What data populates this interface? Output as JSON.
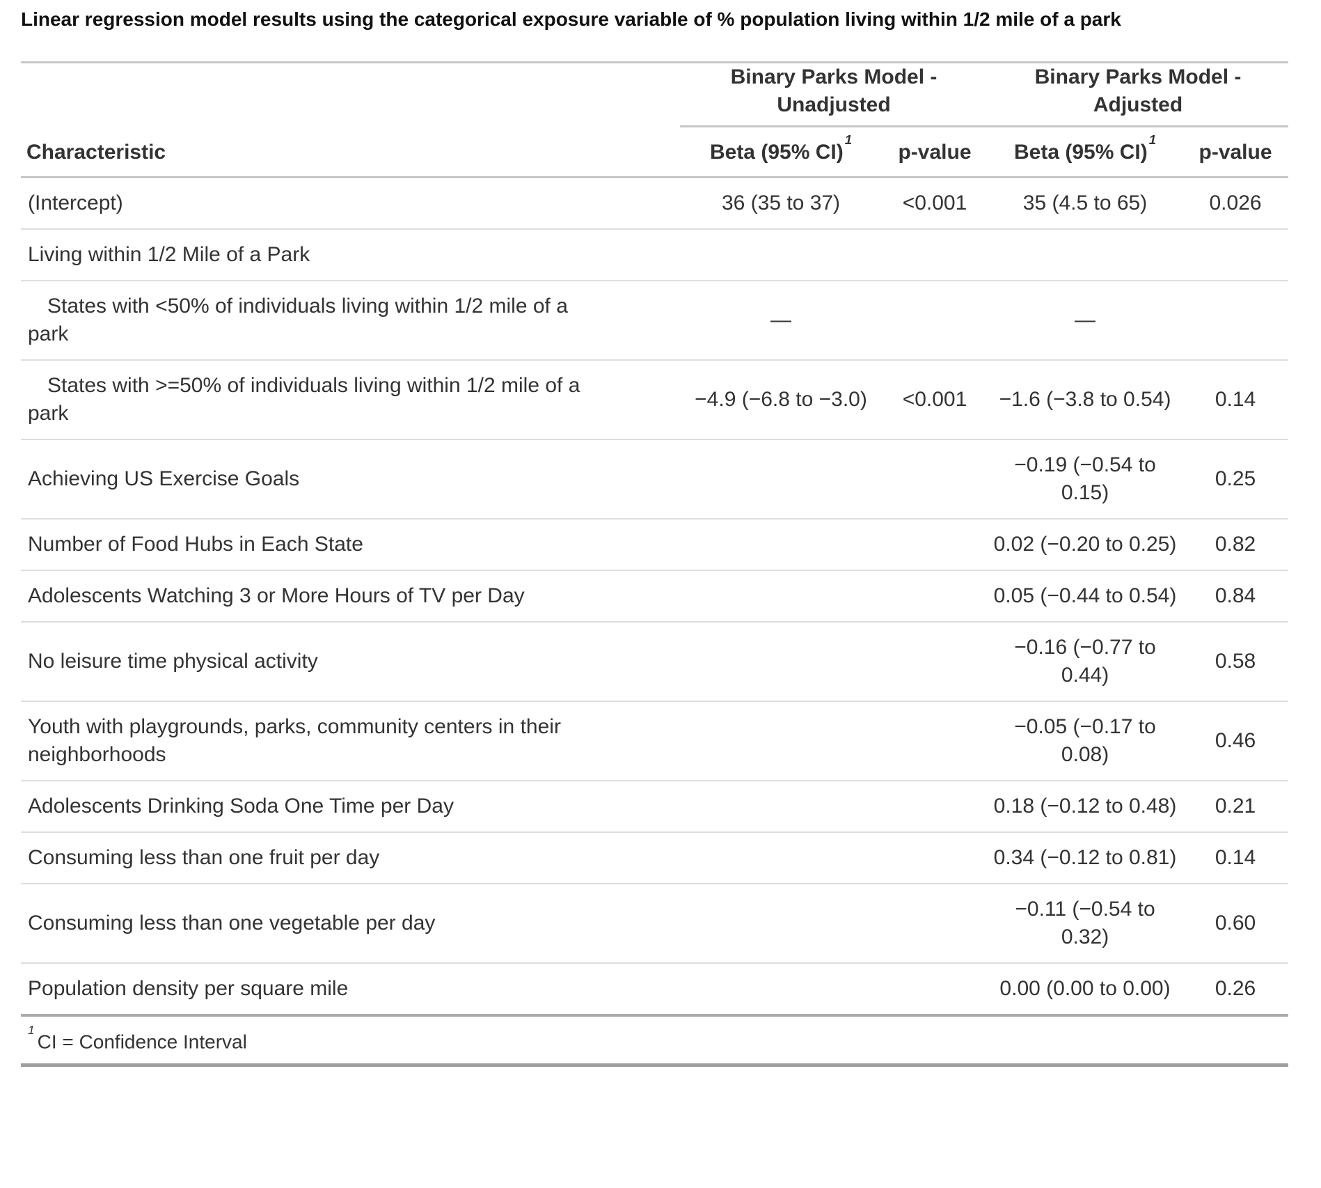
{
  "title": "Linear regression model results using the categorical exposure variable of % population living within 1/2 mile of a park",
  "colors": {
    "text": "#333333",
    "title_text": "#111111",
    "rule_light": "#dedede",
    "rule_medium": "#c6c6c6",
    "rule_dark": "#9e9e9e",
    "background": "#ffffff"
  },
  "table": {
    "characteristic_header": "Characteristic",
    "spanners": [
      {
        "label": "Binary Parks Model - Unadjusted",
        "beta_header": "Beta (95% CI)",
        "beta_footnote_mark": "1",
        "p_header": "p-value"
      },
      {
        "label": "Binary Parks Model - Adjusted",
        "beta_header": "Beta (95% CI)",
        "beta_footnote_mark": "1",
        "p_header": "p-value"
      }
    ],
    "rows": [
      {
        "label": "(Intercept)",
        "indent": false,
        "u_beta": "36 (35 to 37)",
        "u_p": "<0.001",
        "a_beta": "35 (4.5 to 65)",
        "a_p": "0.026"
      },
      {
        "label": "Living within 1/2 Mile of a Park",
        "indent": false,
        "u_beta": "",
        "u_p": "",
        "a_beta": "",
        "a_p": ""
      },
      {
        "label": "States with <50% of individuals living within 1/2 mile of a park",
        "indent": true,
        "u_beta": "—",
        "u_p": "",
        "a_beta": "—",
        "a_p": ""
      },
      {
        "label": "States with >=50% of individuals living within 1/2 mile of a park",
        "indent": true,
        "u_beta": "−4.9 (−6.8 to −3.0)",
        "u_p": "<0.001",
        "a_beta": "−1.6 (−3.8 to 0.54)",
        "a_p": "0.14"
      },
      {
        "label": "Achieving US Exercise Goals",
        "indent": false,
        "u_beta": "",
        "u_p": "",
        "a_beta": "−0.19 (−0.54 to 0.15)",
        "a_p": "0.25"
      },
      {
        "label": "Number of Food Hubs in Each State",
        "indent": false,
        "u_beta": "",
        "u_p": "",
        "a_beta": "0.02 (−0.20 to 0.25)",
        "a_p": "0.82"
      },
      {
        "label": "Adolescents Watching 3 or More Hours of TV per Day",
        "indent": false,
        "u_beta": "",
        "u_p": "",
        "a_beta": "0.05 (−0.44 to 0.54)",
        "a_p": "0.84"
      },
      {
        "label": "No leisure time physical activity",
        "indent": false,
        "u_beta": "",
        "u_p": "",
        "a_beta": "−0.16 (−0.77 to 0.44)",
        "a_p": "0.58"
      },
      {
        "label": "Youth with playgrounds, parks, community centers in their neighborhoods",
        "indent": false,
        "u_beta": "",
        "u_p": "",
        "a_beta": "−0.05 (−0.17 to 0.08)",
        "a_p": "0.46"
      },
      {
        "label": "Adolescents Drinking Soda One Time per Day",
        "indent": false,
        "u_beta": "",
        "u_p": "",
        "a_beta": "0.18 (−0.12 to 0.48)",
        "a_p": "0.21"
      },
      {
        "label": "Consuming less than one fruit per day",
        "indent": false,
        "u_beta": "",
        "u_p": "",
        "a_beta": "0.34 (−0.12 to 0.81)",
        "a_p": "0.14"
      },
      {
        "label": "Consuming less than one vegetable per day",
        "indent": false,
        "u_beta": "",
        "u_p": "",
        "a_beta": "−0.11 (−0.54 to 0.32)",
        "a_p": "0.60"
      },
      {
        "label": "Population density per square mile",
        "indent": false,
        "u_beta": "",
        "u_p": "",
        "a_beta": "0.00 (0.00 to 0.00)",
        "a_p": "0.26"
      }
    ],
    "footnote": {
      "mark": "1",
      "text": "CI = Confidence Interval"
    }
  }
}
